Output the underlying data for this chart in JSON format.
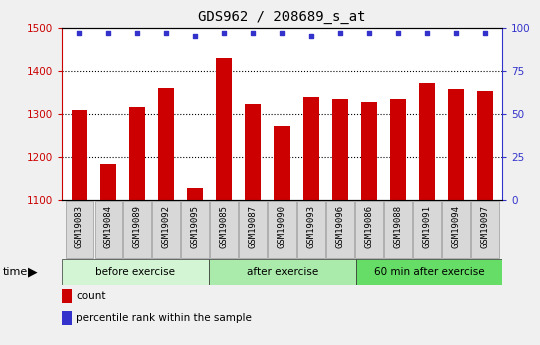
{
  "title": "GDS962 / 208689_s_at",
  "categories": [
    "GSM19083",
    "GSM19084",
    "GSM19089",
    "GSM19092",
    "GSM19095",
    "GSM19085",
    "GSM19087",
    "GSM19090",
    "GSM19093",
    "GSM19096",
    "GSM19086",
    "GSM19088",
    "GSM19091",
    "GSM19094",
    "GSM19097"
  ],
  "counts": [
    1310,
    1183,
    1315,
    1360,
    1127,
    1430,
    1323,
    1272,
    1338,
    1335,
    1328,
    1335,
    1372,
    1358,
    1353
  ],
  "percentile_ranks": [
    97,
    97,
    97,
    97,
    95,
    97,
    97,
    97,
    95,
    97,
    97,
    97,
    97,
    97,
    97
  ],
  "ylim_left": [
    1100,
    1500
  ],
  "ylim_right": [
    0,
    100
  ],
  "yticks_left": [
    1100,
    1200,
    1300,
    1400,
    1500
  ],
  "yticks_right": [
    0,
    25,
    50,
    75,
    100
  ],
  "bar_color": "#cc0000",
  "dot_color": "#3333cc",
  "groups": [
    {
      "label": "before exercise",
      "start": 0,
      "end": 5,
      "color": "#d4f5d4"
    },
    {
      "label": "after exercise",
      "start": 5,
      "end": 10,
      "color": "#aaeaaa"
    },
    {
      "label": "60 min after exercise",
      "start": 10,
      "end": 15,
      "color": "#66dd66"
    }
  ],
  "legend_bar_label": "count",
  "legend_dot_label": "percentile rank within the sample",
  "time_label": "time",
  "tick_bg_color": "#d8d8d8",
  "fig_bg_color": "#f0f0f0",
  "plot_bg": "#ffffff",
  "title_fontsize": 10,
  "axis_fontsize": 7.5,
  "tick_fontsize": 6.5,
  "legend_fontsize": 7.5,
  "group_fontsize": 7.5
}
